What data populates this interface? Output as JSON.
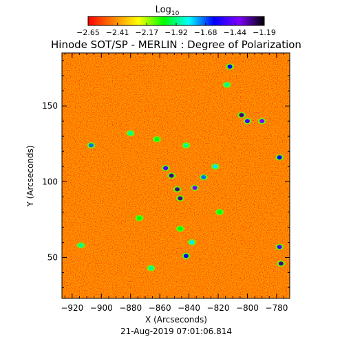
{
  "chart_data": {
    "type": "heatmap",
    "title": "Hinode SOT/SP - MERLIN : Degree of Polarization",
    "xlabel": "X (Arcseconds)",
    "ylabel": "Y (Arcseconds)",
    "timestamp": "21-Aug-2019 07:01:06.814",
    "xlim": [
      -927,
      -771
    ],
    "ylim": [
      23,
      185
    ],
    "x_ticks": [
      -920,
      -900,
      -880,
      -860,
      -840,
      -820,
      -800,
      -780
    ],
    "y_ticks": [
      50,
      100,
      150
    ],
    "colorbar": {
      "label_base": "Log",
      "label_subscript": "10",
      "range": [
        -2.65,
        -1.19
      ],
      "tick_labels": [
        "-2.65",
        "-2.41",
        "-2.17",
        "-1.92",
        "-1.68",
        "-1.44",
        "-1.19"
      ],
      "colormap": [
        "#ff0000",
        "#ff8000",
        "#ffff00",
        "#00ff00",
        "#00ffff",
        "#0000ff",
        "#8000ff",
        "#000000"
      ]
    },
    "features": [
      {
        "x": -812,
        "y": 176,
        "value": -1.6
      },
      {
        "x": -814,
        "y": 164,
        "value": -1.9
      },
      {
        "x": -804,
        "y": 144,
        "value": -1.3
      },
      {
        "x": -790,
        "y": 140,
        "value": -1.4
      },
      {
        "x": -800,
        "y": 140,
        "value": -1.5
      },
      {
        "x": -856,
        "y": 109,
        "value": -1.5
      },
      {
        "x": -852,
        "y": 104,
        "value": -1.3
      },
      {
        "x": -848,
        "y": 95,
        "value": -1.3
      },
      {
        "x": -846,
        "y": 89,
        "value": -1.3
      },
      {
        "x": -836,
        "y": 96,
        "value": -1.4
      },
      {
        "x": -830,
        "y": 103,
        "value": -1.7
      },
      {
        "x": -822,
        "y": 110,
        "value": -1.8
      },
      {
        "x": -778,
        "y": 116,
        "value": -1.6
      },
      {
        "x": -907,
        "y": 124,
        "value": -1.7
      },
      {
        "x": -880,
        "y": 132,
        "value": -1.9
      },
      {
        "x": -862,
        "y": 128,
        "value": -2.0
      },
      {
        "x": -842,
        "y": 124,
        "value": -1.9
      },
      {
        "x": -778,
        "y": 57,
        "value": -1.5
      },
      {
        "x": -777,
        "y": 46,
        "value": -1.3
      },
      {
        "x": -838,
        "y": 60,
        "value": -1.8
      },
      {
        "x": -842,
        "y": 51,
        "value": -1.6
      },
      {
        "x": -866,
        "y": 43,
        "value": -1.9
      },
      {
        "x": -846,
        "y": 69,
        "value": -2.0
      },
      {
        "x": -914,
        "y": 58,
        "value": -1.9
      },
      {
        "x": -874,
        "y": 76,
        "value": -2.0
      },
      {
        "x": -819,
        "y": 80,
        "value": -2.0
      }
    ]
  }
}
